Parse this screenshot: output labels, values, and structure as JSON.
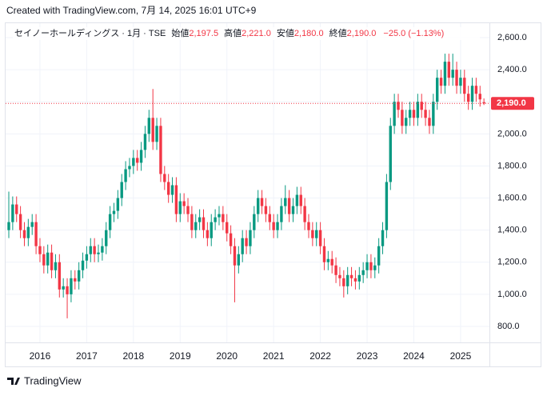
{
  "header": {
    "created": "Created with TradingView.com, 7月 14, 2025 16:01 UTC+9"
  },
  "footer": {
    "brand": "TradingView"
  },
  "chart_data": {
    "type": "candlestick",
    "legend": {
      "symbol": "セイノーホールディングス · 1月 · TSE",
      "open_label": "始値",
      "open": "2,197.5",
      "high_label": "高値",
      "high": "2,221.0",
      "low_label": "安値",
      "low": "2,180.0",
      "close_label": "終値",
      "close": "2,190.0",
      "change": "−25.0 (−1.13%)"
    },
    "last_price_label": "2,190.0",
    "up_color": "#089981",
    "down_color": "#f23645",
    "categories": [
      null,
      null,
      null,
      null,
      null,
      null,
      null,
      null,
      "2016",
      null,
      null,
      null,
      null,
      null,
      null,
      null,
      null,
      null,
      null,
      null,
      "2017",
      null,
      null,
      null,
      null,
      null,
      null,
      null,
      null,
      null,
      null,
      null,
      "2018",
      null,
      null,
      null,
      null,
      null,
      null,
      null,
      null,
      null,
      null,
      null,
      "2019",
      null,
      null,
      null,
      null,
      null,
      null,
      null,
      null,
      null,
      null,
      null,
      "2020",
      null,
      null,
      null,
      null,
      null,
      null,
      null,
      null,
      null,
      null,
      null,
      "2021",
      null,
      null,
      null,
      null,
      null,
      null,
      null,
      null,
      null,
      null,
      null,
      "2022",
      null,
      null,
      null,
      null,
      null,
      null,
      null,
      null,
      null,
      null,
      null,
      "2023",
      null,
      null,
      null,
      null,
      null,
      null,
      null,
      null,
      null,
      null,
      null,
      "2024",
      null,
      null,
      null,
      null,
      null,
      null,
      null,
      null,
      null,
      null,
      null,
      "2025",
      null,
      null,
      null,
      null,
      null,
      null
    ],
    "open": [
      1400,
      1450,
      1560,
      1500,
      1400,
      1350,
      1420,
      1450,
      1300,
      1250,
      1180,
      1260,
      1150,
      1200,
      1030,
      1050,
      1000,
      1100,
      1080,
      1150,
      1210,
      1250,
      1300,
      1250,
      1260,
      1300,
      1400,
      1500,
      1520,
      1600,
      1700,
      1780,
      1800,
      1850,
      1820,
      1900,
      2000,
      2100,
      1950,
      2050,
      1750,
      1700,
      1620,
      1680,
      1500,
      1580,
      1550,
      1500,
      1400,
      1450,
      1480,
      1400,
      1350,
      1450,
      1480,
      1500,
      1450,
      1380,
      1300,
      1180,
      1250,
      1350,
      1300,
      1400,
      1500,
      1600,
      1550,
      1500,
      1450,
      1400,
      1450,
      1550,
      1600,
      1500,
      1550,
      1620,
      1550,
      1450,
      1400,
      1350,
      1400,
      1300,
      1200,
      1220,
      1180,
      1120,
      1100,
      1050,
      1120,
      1100,
      1080,
      1120,
      1150,
      1200,
      1150,
      1180,
      1300,
      1400,
      1700,
      2050,
      2200,
      2150,
      2050,
      2100,
      2150,
      2100,
      2200,
      2150,
      2100,
      2050,
      2200,
      2350,
      2300,
      2450,
      2350,
      2400,
      2300,
      2350,
      2250,
      2200,
      2300,
      2250,
      2197.5
    ],
    "high": [
      1640,
      1610,
      1610,
      1550,
      1450,
      1470,
      1500,
      1500,
      1350,
      1300,
      1310,
      1310,
      1250,
      1250,
      1100,
      1100,
      1150,
      1150,
      1200,
      1260,
      1300,
      1350,
      1350,
      1310,
      1350,
      1450,
      1550,
      1570,
      1650,
      1750,
      1830,
      1850,
      1900,
      1900,
      1950,
      2050,
      2150,
      2280,
      2100,
      2100,
      1800,
      1750,
      1730,
      1730,
      1630,
      1630,
      1600,
      1550,
      1500,
      1530,
      1530,
      1450,
      1500,
      1530,
      1550,
      1550,
      1500,
      1430,
      1350,
      1300,
      1400,
      1400,
      1450,
      1550,
      1650,
      1650,
      1600,
      1550,
      1500,
      1500,
      1600,
      1680,
      1650,
      1600,
      1670,
      1670,
      1600,
      1500,
      1450,
      1450,
      1450,
      1350,
      1270,
      1270,
      1230,
      1170,
      1150,
      1170,
      1170,
      1150,
      1170,
      1200,
      1250,
      1250,
      1230,
      1350,
      1450,
      1750,
      2100,
      2250,
      2250,
      2200,
      2150,
      2200,
      2200,
      2250,
      2250,
      2200,
      2150,
      2250,
      2400,
      2400,
      2500,
      2500,
      2500,
      2450,
      2400,
      2400,
      2300,
      2350,
      2350,
      2300,
      2221
    ],
    "low": [
      1350,
      1400,
      1450,
      1350,
      1300,
      1300,
      1370,
      1250,
      1200,
      1130,
      1130,
      1100,
      1100,
      980,
      980,
      850,
      950,
      1030,
      1030,
      1100,
      1160,
      1200,
      1200,
      1200,
      1210,
      1250,
      1350,
      1450,
      1470,
      1550,
      1650,
      1730,
      1750,
      1770,
      1770,
      1850,
      1950,
      1900,
      1900,
      1700,
      1650,
      1570,
      1570,
      1450,
      1450,
      1500,
      1450,
      1350,
      1350,
      1400,
      1350,
      1300,
      1300,
      1400,
      1430,
      1400,
      1330,
      1250,
      950,
      1130,
      1200,
      1250,
      1250,
      1350,
      1450,
      1500,
      1450,
      1400,
      1350,
      1350,
      1400,
      1500,
      1450,
      1450,
      1500,
      1500,
      1400,
      1350,
      1300,
      1300,
      1250,
      1150,
      1150,
      1130,
      1070,
      1050,
      980,
      1000,
      1050,
      1030,
      1030,
      1070,
      1100,
      1100,
      1100,
      1130,
      1250,
      1350,
      1650,
      2000,
      2100,
      2000,
      2000,
      2050,
      2050,
      2050,
      2100,
      2050,
      2000,
      2000,
      2150,
      2250,
      2250,
      2300,
      2300,
      2250,
      2250,
      2200,
      2150,
      2150,
      2200,
      2170,
      2180
    ],
    "close": [
      1450,
      1560,
      1500,
      1400,
      1350,
      1420,
      1450,
      1300,
      1250,
      1180,
      1260,
      1150,
      1200,
      1030,
      1050,
      1000,
      1100,
      1080,
      1150,
      1210,
      1250,
      1300,
      1250,
      1260,
      1300,
      1400,
      1500,
      1520,
      1600,
      1700,
      1780,
      1800,
      1850,
      1820,
      1900,
      2000,
      2100,
      1950,
      2050,
      1750,
      1700,
      1620,
      1680,
      1500,
      1580,
      1550,
      1500,
      1400,
      1450,
      1480,
      1400,
      1350,
      1450,
      1480,
      1500,
      1450,
      1380,
      1300,
      1180,
      1250,
      1350,
      1300,
      1400,
      1500,
      1600,
      1550,
      1500,
      1450,
      1400,
      1450,
      1550,
      1600,
      1500,
      1550,
      1620,
      1550,
      1450,
      1400,
      1350,
      1400,
      1300,
      1200,
      1220,
      1180,
      1120,
      1100,
      1050,
      1120,
      1100,
      1080,
      1120,
      1150,
      1200,
      1150,
      1180,
      1300,
      1400,
      1700,
      2050,
      2200,
      2150,
      2050,
      2100,
      2150,
      2100,
      2200,
      2150,
      2100,
      2050,
      2200,
      2350,
      2300,
      2450,
      2350,
      2400,
      2300,
      2350,
      2250,
      2200,
      2300,
      2250,
      2215,
      2190
    ],
    "ylim": [
      700,
      2700
    ],
    "yticks": [
      {
        "value": 800,
        "label": "800.0"
      },
      {
        "value": 1000,
        "label": "1,000.0"
      },
      {
        "value": 1200,
        "label": "1,200.0"
      },
      {
        "value": 1400,
        "label": "1,400.0"
      },
      {
        "value": 1600,
        "label": "1,600.0"
      },
      {
        "value": 1800,
        "label": "1,800.0"
      },
      {
        "value": 2000,
        "label": "2,000.0"
      },
      {
        "value": 2200,
        "label": "2,200.0"
      },
      {
        "value": 2400,
        "label": "2,400.0"
      },
      {
        "value": 2600,
        "label": "2,600.0"
      }
    ],
    "grid": true
  }
}
